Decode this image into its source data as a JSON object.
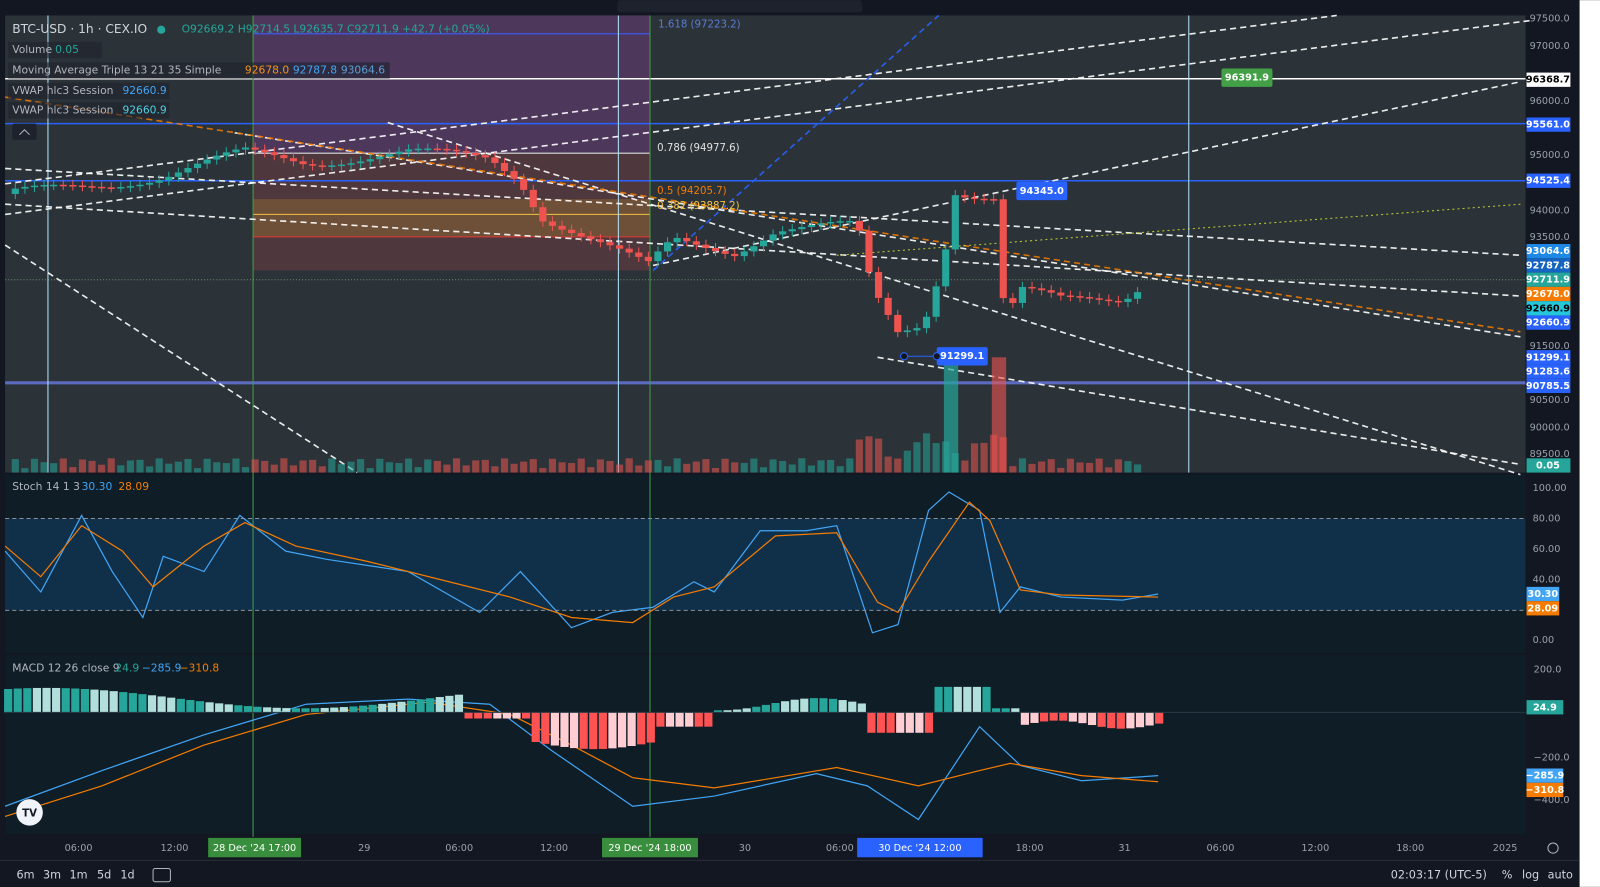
{
  "header": {
    "symbol": "BTC-USD · 1h · CEX.IO",
    "ohlc": "O92669.2 H92714.5 L92635.7 C92711.9 +42.7 (+0.05%)"
  },
  "legend": [
    {
      "label": "Volume",
      "values": [
        {
          "text": "0.05",
          "color": "#26a69a"
        }
      ]
    },
    {
      "label": "Moving Average Triple 13 21 35 Simple",
      "values": [
        {
          "text": "92678.0",
          "color": "#f7931a"
        },
        {
          "text": "92787.8",
          "color": "#42a5f5"
        },
        {
          "text": "93064.6",
          "color": "#5c9fd6"
        }
      ]
    },
    {
      "label": "VWAP hlc3 Session",
      "values": [
        {
          "text": "92660.9",
          "color": "#42a5f5"
        }
      ]
    },
    {
      "label": "VWAP hlc3 Session",
      "values": [
        {
          "text": "92660.9",
          "color": "#4dd0e1"
        }
      ]
    }
  ],
  "fib_labels": [
    {
      "text": "1.618 (97223.2)",
      "color": "#5b7bd5"
    },
    {
      "text": "0.786 (94977.6)",
      "color": "#e0e0e0"
    },
    {
      "text": "0.5 (94205.7)",
      "color": "#f57c00"
    },
    {
      "text": "0.382 (93887.2)",
      "color": "#f5c242"
    }
  ],
  "chart_tags": [
    {
      "text": "96391.9",
      "color": "#43a047"
    },
    {
      "text": "94345.0",
      "color": "#2962ff"
    },
    {
      "text": "91299.1",
      "color": "#2962ff"
    }
  ],
  "price_axis": [
    "97500.0",
    "97000.0",
    "96000.0",
    "95000.0",
    "94000.0",
    "93500.0",
    "91500.0",
    "90500.0",
    "90000.0",
    "89500.0"
  ],
  "price_tags": [
    {
      "text": "96368.7",
      "color": "#ffffff",
      "text_color": "#000000"
    },
    {
      "text": "95561.0",
      "color": "#2962ff",
      "text_color": "#ffffff"
    },
    {
      "text": "94525.4",
      "color": "#2962ff",
      "text_color": "#ffffff"
    },
    {
      "text": "93064.6",
      "color": "#1e88e5",
      "text_color": "#ffffff"
    },
    {
      "text": "92787.8",
      "color": "#1565c0",
      "text_color": "#ffffff"
    },
    {
      "text": "92711.9",
      "color": "#26a69a",
      "text_color": "#ffffff"
    },
    {
      "text": "92678.0",
      "color": "#f57c00",
      "text_color": "#ffffff"
    },
    {
      "text": "92660.9",
      "color": "#26c6da",
      "text_color": "#000000"
    },
    {
      "text": "92660.9",
      "color": "#2962ff",
      "text_color": "#ffffff"
    },
    {
      "text": "91299.1",
      "color": "#2962ff",
      "text_color": "#ffffff"
    },
    {
      "text": "91283.6",
      "color": "#2962ff",
      "text_color": "#ffffff"
    },
    {
      "text": "90785.5",
      "color": "#2962ff",
      "text_color": "#ffffff"
    },
    {
      "text": "0.05",
      "color": "#26a69a",
      "text_color": "#ffffff"
    }
  ],
  "stoch": {
    "label": "Stoch 14 1 3",
    "values": [
      {
        "text": "30.30",
        "color": "#42a5f5"
      },
      {
        "text": "28.09",
        "color": "#f57c00"
      }
    ],
    "axis": [
      "100.00",
      "80.00",
      "60.00",
      "40.00",
      "0.00"
    ]
  },
  "macd": {
    "label": "MACD 12 26 close 9",
    "values": [
      {
        "text": "24.9",
        "color": "#26a69a"
      },
      {
        "text": "−285.9",
        "color": "#42a5f5"
      },
      {
        "text": "−310.8",
        "color": "#f57c00"
      }
    ],
    "axis": [
      "200.0",
      "−200.0",
      "−400.0"
    ]
  },
  "time_axis": [
    "06:00",
    "12:00",
    "29",
    "06:00",
    "12:00",
    "30",
    "06:00",
    "18:00",
    "31",
    "06:00",
    "12:00",
    "18:00",
    "2025"
  ],
  "time_markers": [
    {
      "text": "28 Dec '24 17:00",
      "color": "#388e3c"
    },
    {
      "text": "29 Dec '24 18:00",
      "color": "#388e3c"
    },
    {
      "text": "30 Dec '24 12:00",
      "color": "#2962ff"
    }
  ],
  "toolbar": {
    "ranges": [
      "6m",
      "3m",
      "1m",
      "5d",
      "1d"
    ],
    "clock": "02:03:17 (UTC-5)",
    "options": [
      "%",
      "log",
      "auto"
    ]
  }
}
